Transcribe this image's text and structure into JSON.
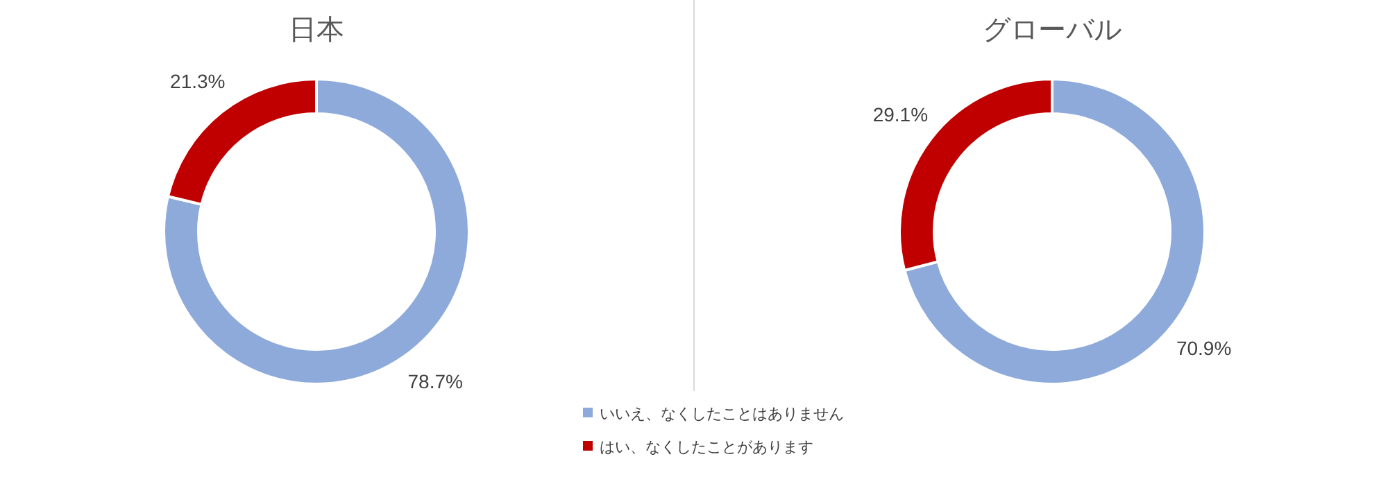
{
  "chart_data": [
    {
      "type": "donut",
      "title": "日本",
      "categories": [
        "いいえ、なくしたことはありません",
        "はい、なくしたことがあります"
      ],
      "values": [
        78.7,
        21.3
      ],
      "colors": [
        "#8eaadb",
        "#c00000"
      ],
      "value_labels": [
        "78.7%",
        "21.3%"
      ],
      "legend": "bottom"
    },
    {
      "type": "donut",
      "title": "グローバル",
      "categories": [
        null,
        null
      ],
      "values": [
        70.9,
        29.1
      ],
      "colors": [
        "#8eaadb",
        "#c00000"
      ],
      "value_labels": [
        "70.9%",
        "29.1%"
      ]
    }
  ]
}
